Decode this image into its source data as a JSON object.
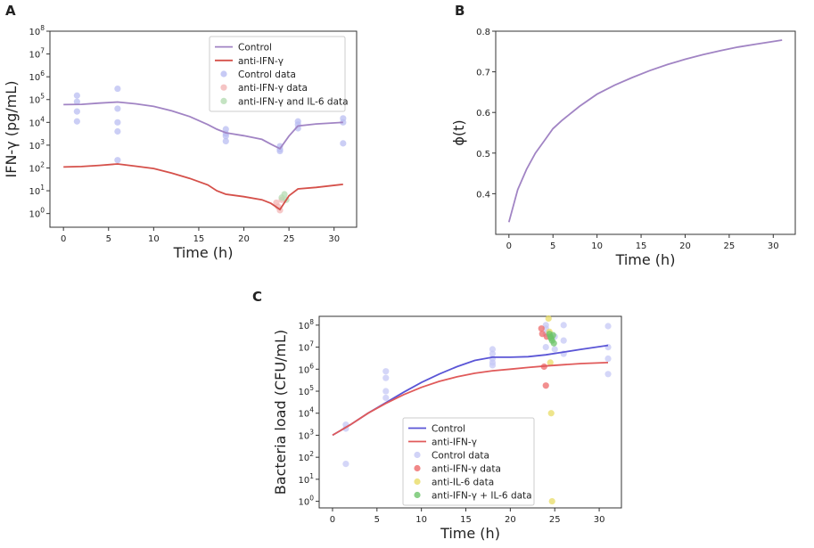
{
  "chart_data": [
    {
      "panel": "A",
      "type": "line",
      "xlabel": "Time (h)",
      "ylabel": "IFN-γ (pg/mL)",
      "xlim": [
        -1.5,
        32.5
      ],
      "ylim_log10": [
        -0.6,
        8
      ],
      "yscale": "log",
      "xticks": [
        0,
        5,
        10,
        15,
        20,
        25,
        30
      ],
      "yticks_log10": [
        0,
        1,
        2,
        3,
        4,
        5,
        6,
        7,
        8
      ],
      "series": [
        {
          "name": "Control",
          "kind": "line",
          "color": "#a184c4",
          "x": [
            0,
            2,
            4,
            6,
            8,
            10,
            12,
            14,
            16,
            17,
            18,
            20,
            22,
            23,
            24,
            25,
            26,
            28,
            31
          ],
          "y": [
            60000,
            62000,
            70000,
            78000,
            65000,
            50000,
            32000,
            18000,
            8000,
            5000,
            3500,
            2600,
            1800,
            1100,
            700,
            2500,
            7000,
            8500,
            10000
          ]
        },
        {
          "name": "anti-IFN-γ",
          "kind": "line",
          "color": "#d5504a",
          "x": [
            0,
            2,
            4,
            6,
            8,
            10,
            12,
            14,
            16,
            17,
            18,
            20,
            22,
            23,
            24,
            25,
            26,
            28,
            31
          ],
          "y": [
            110,
            115,
            130,
            150,
            120,
            95,
            60,
            35,
            18,
            10,
            7,
            5.5,
            4,
            2.8,
            1.5,
            6,
            12,
            14,
            19
          ]
        },
        {
          "name": "Control data",
          "kind": "scatter",
          "color": "#b9bdf2",
          "x": [
            1.5,
            1.5,
            1.5,
            1.5,
            6,
            6,
            6,
            6,
            6,
            18,
            18,
            18,
            18,
            24,
            24,
            24,
            26,
            26,
            26,
            31,
            31,
            31
          ],
          "y": [
            150000,
            80000,
            30000,
            11000,
            300000,
            40000,
            10000,
            4000,
            220,
            5000,
            3200,
            2500,
            1500,
            900,
            650,
            550,
            11000,
            8000,
            5500,
            15000,
            10000,
            1200
          ]
        },
        {
          "name": "anti-IFN-γ data",
          "kind": "scatter",
          "color": "#f3b5b5",
          "x": [
            23.6,
            23.8,
            24.0,
            24.2
          ],
          "y": [
            3.0,
            2.0,
            1.4,
            4.0
          ]
        },
        {
          "name": "anti-IFN-γ and IL-6 data",
          "kind": "scatter",
          "color": "#b5dcb3",
          "x": [
            24.2,
            24.5,
            24.7
          ],
          "y": [
            5.0,
            7.0,
            4.0
          ]
        }
      ]
    },
    {
      "panel": "B",
      "type": "line",
      "xlabel": "Time (h)",
      "ylabel": "ϕ(t)",
      "xlim": [
        -1.5,
        32.5
      ],
      "ylim": [
        0.3,
        0.8
      ],
      "xticks": [
        0,
        5,
        10,
        15,
        20,
        25,
        30
      ],
      "yticks": [
        0.4,
        0.5,
        0.6,
        0.7,
        0.8
      ],
      "series": [
        {
          "name": "phi",
          "kind": "line",
          "color": "#a184c4",
          "x": [
            0,
            1,
            2,
            3,
            4,
            5,
            6,
            8,
            10,
            12,
            14,
            16,
            18,
            20,
            22,
            24,
            26,
            28,
            31
          ],
          "y": [
            0.33,
            0.41,
            0.46,
            0.5,
            0.53,
            0.56,
            0.58,
            0.615,
            0.645,
            0.667,
            0.686,
            0.703,
            0.718,
            0.731,
            0.742,
            0.752,
            0.761,
            0.768,
            0.778
          ]
        }
      ]
    },
    {
      "panel": "C",
      "type": "line",
      "xlabel": "Time (h)",
      "ylabel": "Bacteria load (CFU/mL)",
      "xlim": [
        -1.5,
        32.5
      ],
      "ylim_log10": [
        -0.3,
        8.4
      ],
      "yscale": "log",
      "xticks": [
        0,
        5,
        10,
        15,
        20,
        25,
        30
      ],
      "yticks_log10": [
        0,
        1,
        2,
        3,
        4,
        5,
        6,
        7,
        8
      ],
      "series": [
        {
          "name": "Control",
          "kind": "line",
          "color": "#5a55d6",
          "x": [
            0,
            2,
            4,
            6,
            8,
            10,
            12,
            14,
            16,
            18,
            20,
            22,
            24,
            26,
            28,
            31
          ],
          "y": [
            1000,
            3000,
            10000,
            30000,
            90000,
            250000,
            600000,
            1300000,
            2500000,
            3500000,
            3500000,
            3700000,
            4500000,
            6000000,
            8000000,
            12000000
          ]
        },
        {
          "name": "anti-IFN-γ",
          "kind": "line",
          "color": "#e05a5a",
          "x": [
            0,
            2,
            4,
            6,
            8,
            10,
            12,
            14,
            16,
            18,
            20,
            22,
            24,
            26,
            28,
            31
          ],
          "y": [
            1000,
            3000,
            10000,
            28000,
            70000,
            150000,
            280000,
            450000,
            650000,
            850000,
            1000000,
            1200000,
            1400000,
            1600000,
            1800000,
            2000000
          ]
        },
        {
          "name": "Control data",
          "kind": "scatter",
          "color": "#c5c8f5",
          "x": [
            1.5,
            1.5,
            1.5,
            6,
            6,
            6,
            6,
            18,
            18,
            18,
            18,
            18,
            24,
            24,
            24,
            24,
            25,
            25,
            26,
            26,
            26,
            31,
            31,
            31,
            31
          ],
          "y": [
            3000,
            2000,
            50,
            800000,
            400000,
            100000,
            50000,
            8000000,
            5000000,
            3000000,
            2000000,
            1500000,
            100000000,
            70000000,
            40000000,
            10000000,
            30000000,
            8000000,
            100000000,
            20000000,
            5000000,
            90000000,
            10000000,
            3000000,
            600000
          ]
        },
        {
          "name": "anti-IFN-γ data",
          "kind": "scatter",
          "color": "#ee6a6a",
          "x": [
            23.5,
            23.6,
            23.8,
            24.0,
            24.1
          ],
          "y": [
            70000000,
            40000000,
            1300000,
            180000,
            30000000
          ]
        },
        {
          "name": "anti-IL-6 data",
          "kind": "scatter",
          "color": "#e8dc66",
          "x": [
            24.3,
            24.4,
            24.5,
            24.6,
            24.7
          ],
          "y": [
            200000000,
            50000000,
            2000000,
            10000,
            1
          ]
        },
        {
          "name": "anti-IFN-γ + IL-6 data",
          "kind": "scatter",
          "color": "#6ec46a",
          "x": [
            24.4,
            24.5,
            24.6,
            24.7,
            24.8,
            24.9
          ],
          "y": [
            40000000,
            30000000,
            25000000,
            20000000,
            35000000,
            15000000
          ]
        }
      ]
    }
  ]
}
